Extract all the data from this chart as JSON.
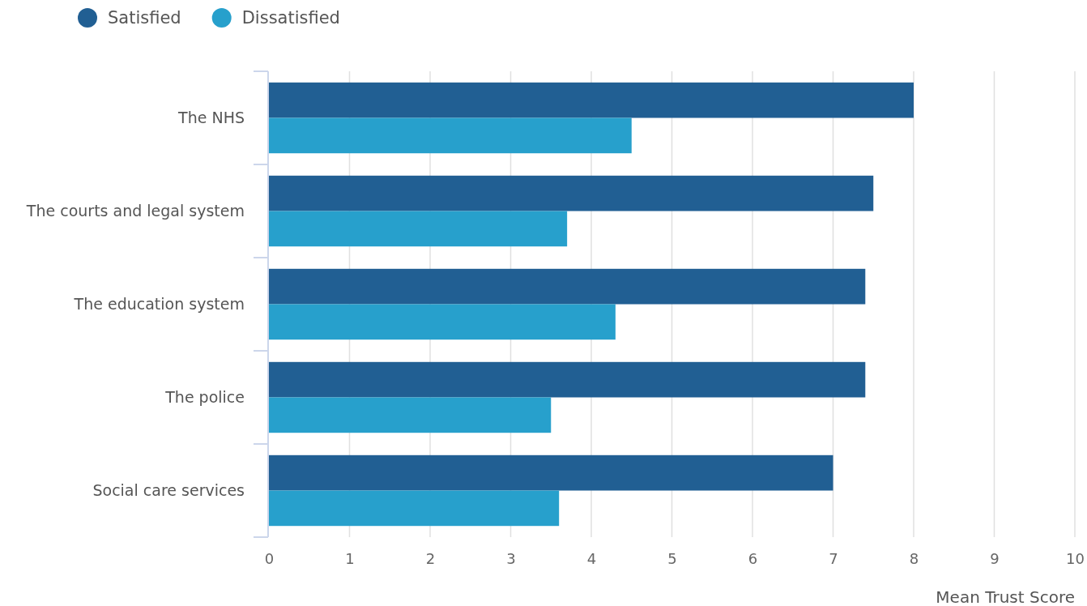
{
  "chart_data": {
    "type": "bar",
    "orientation": "horizontal",
    "categories": [
      "The NHS",
      "The courts and legal system",
      "The education system",
      "The police",
      "Social care services"
    ],
    "series": [
      {
        "name": "Satisfied",
        "color": "#215f93",
        "values": [
          8.0,
          7.5,
          7.4,
          7.4,
          7.0
        ]
      },
      {
        "name": "Dissatisfied",
        "color": "#27a0cc",
        "values": [
          4.5,
          3.7,
          4.3,
          3.5,
          3.6
        ]
      }
    ],
    "xlabel": "Mean Trust Score",
    "xlim": [
      0,
      10
    ],
    "xticks": [
      0,
      1,
      2,
      3,
      4,
      5,
      6,
      7,
      8,
      9,
      10
    ],
    "grid": "x",
    "legend": "top left"
  }
}
